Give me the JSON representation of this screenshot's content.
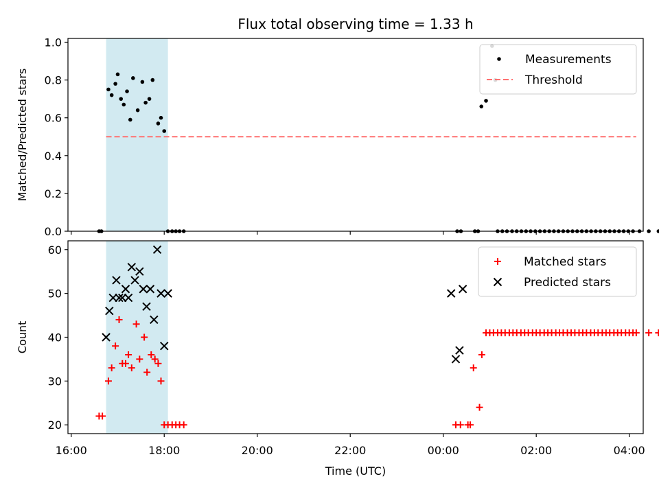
{
  "title": "Flux total observing time = 1.33 h",
  "chart_data": [
    {
      "type": "scatter",
      "ylabel": "Matched/Predicted stars",
      "xlim": [
        15.93,
        28.3
      ],
      "ylim": [
        0,
        1.02
      ],
      "yticks": [
        "0.0",
        "0.2",
        "0.4",
        "0.6",
        "0.8",
        "1.0"
      ],
      "ytick_values": [
        0,
        0.2,
        0.4,
        0.6,
        0.8,
        1.0
      ],
      "shaded_span": {
        "x0": 16.75,
        "x1": 18.08,
        "color": "#add8e6"
      },
      "legend_position": "upper right",
      "threshold": {
        "name": "Threshold",
        "y": 0.5,
        "x0": 16.75,
        "x1": 28.15,
        "color": "#ff7070"
      },
      "series": [
        {
          "name": "Measurements",
          "color": "#000000",
          "marker": "dot",
          "x": [
            16.6,
            16.65,
            16.8,
            16.87,
            16.95,
            17.0,
            17.07,
            17.13,
            17.2,
            17.27,
            17.33,
            17.43,
            17.53,
            17.6,
            17.68,
            17.75,
            17.87,
            17.93,
            18.0,
            18.08,
            18.17,
            18.25,
            18.33,
            18.42,
            24.3,
            24.38,
            24.68,
            24.75,
            24.82,
            24.92,
            25.05,
            25.12,
            25.17,
            25.27,
            25.37,
            25.48,
            25.58,
            25.68,
            25.78,
            25.88,
            25.98,
            26.08,
            26.18,
            26.28,
            26.38,
            26.48,
            26.58,
            26.68,
            26.78,
            26.88,
            26.98,
            27.08,
            27.18,
            27.28,
            27.38,
            27.48,
            27.58,
            27.68,
            27.78,
            27.88,
            27.98,
            28.08,
            28.22,
            28.42,
            28.63
          ],
          "y": [
            0,
            0,
            0.75,
            0.72,
            0.78,
            0.83,
            0.7,
            0.67,
            0.74,
            0.59,
            0.81,
            0.64,
            0.79,
            0.68,
            0.7,
            0.8,
            0.57,
            0.6,
            0.53,
            0,
            0,
            0,
            0,
            0,
            0,
            0,
            0,
            0,
            0.66,
            0.69,
            0.98,
            0.8,
            0,
            0,
            0,
            0,
            0,
            0,
            0,
            0,
            0,
            0,
            0,
            0,
            0,
            0,
            0,
            0,
            0,
            0,
            0,
            0,
            0,
            0,
            0,
            0,
            0,
            0,
            0,
            0,
            0,
            0,
            0,
            0,
            0
          ]
        }
      ]
    },
    {
      "type": "scatter",
      "ylabel": "Count",
      "xlabel": "Time (UTC)",
      "xlim": [
        15.93,
        28.3
      ],
      "ylim": [
        18,
        62
      ],
      "yticks": [
        "20",
        "30",
        "40",
        "50",
        "60"
      ],
      "ytick_values": [
        20,
        30,
        40,
        50,
        60
      ],
      "xticks": [
        "16:00",
        "18:00",
        "20:00",
        "22:00",
        "00:00",
        "02:00",
        "04:00"
      ],
      "xtick_values": [
        16,
        18,
        20,
        22,
        24,
        26,
        28
      ],
      "shaded_span": {
        "x0": 16.75,
        "x1": 18.08,
        "color": "#add8e6"
      },
      "legend_position": "upper right",
      "series": [
        {
          "name": "Matched stars",
          "color": "#ff0000",
          "marker": "plus",
          "x": [
            16.6,
            16.67,
            16.8,
            16.87,
            16.95,
            17.03,
            17.1,
            17.17,
            17.23,
            17.3,
            17.4,
            17.47,
            17.57,
            17.63,
            17.72,
            17.8,
            17.87,
            17.93,
            18.0,
            18.08,
            18.17,
            18.25,
            18.33,
            18.42,
            24.27,
            24.37,
            24.53,
            24.58,
            24.65,
            24.78,
            24.83,
            24.92,
            25.0,
            25.08,
            25.17,
            25.25,
            25.33,
            25.42,
            25.5,
            25.58,
            25.67,
            25.75,
            25.83,
            25.92,
            26.0,
            26.08,
            26.17,
            26.25,
            26.33,
            26.42,
            26.5,
            26.58,
            26.67,
            26.75,
            26.83,
            26.92,
            27.0,
            27.08,
            27.17,
            27.25,
            27.33,
            27.42,
            27.5,
            27.58,
            27.67,
            27.75,
            27.83,
            27.92,
            28.0,
            28.08,
            28.15,
            28.42,
            28.63
          ],
          "y": [
            22,
            22,
            30,
            33,
            38,
            44,
            34,
            34,
            36,
            33,
            43,
            35,
            40,
            32,
            36,
            35,
            34,
            30,
            20,
            20,
            20,
            20,
            20,
            20,
            20,
            20,
            20,
            20,
            33,
            24,
            36,
            41,
            41,
            41,
            41,
            41,
            41,
            41,
            41,
            41,
            41,
            41,
            41,
            41,
            41,
            41,
            41,
            41,
            41,
            41,
            41,
            41,
            41,
            41,
            41,
            41,
            41,
            41,
            41,
            41,
            41,
            41,
            41,
            41,
            41,
            41,
            41,
            41,
            41,
            41,
            41,
            41,
            41
          ]
        },
        {
          "name": "Predicted stars",
          "color": "#000000",
          "marker": "x",
          "x": [
            16.75,
            16.82,
            16.9,
            16.97,
            17.03,
            17.1,
            17.17,
            17.23,
            17.3,
            17.37,
            17.47,
            17.55,
            17.62,
            17.7,
            17.78,
            17.85,
            17.93,
            18.0,
            18.08,
            24.17,
            24.27,
            24.35,
            24.42
          ],
          "y": [
            40,
            46,
            49,
            53,
            49,
            49,
            51,
            49,
            56,
            53,
            55,
            51,
            47,
            51,
            44,
            60,
            50,
            38,
            50,
            50,
            35,
            37,
            51
          ]
        }
      ]
    }
  ]
}
